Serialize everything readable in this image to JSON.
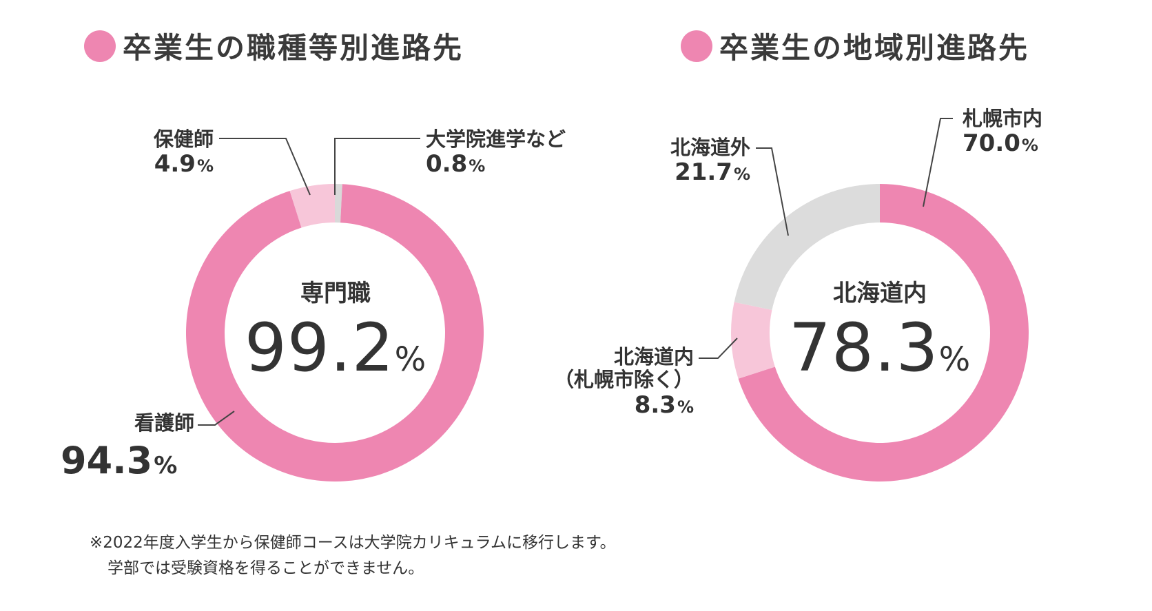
{
  "titles": {
    "left": "卒業生の職種等別進路先",
    "right": "卒業生の地域別進路先"
  },
  "chart_data": [
    {
      "type": "pie",
      "title": "卒業生の職種等別進路先",
      "center_label": "専門職",
      "center_value": "99.2",
      "center_unit": "%",
      "slices": [
        {
          "label": "大学院進学など",
          "value": 0.8,
          "value_text": "0.8",
          "unit": "%",
          "color": "#d9d9d9"
        },
        {
          "label": "看護師",
          "value": 94.3,
          "value_text": "94.3",
          "unit": "%",
          "color": "#ee86b1"
        },
        {
          "label": "保健師",
          "value": 4.9,
          "value_text": "4.9",
          "unit": "%",
          "color": "#f7c6d9"
        }
      ]
    },
    {
      "type": "pie",
      "title": "卒業生の地域別進路先",
      "center_label": "北海道内",
      "center_value": "78.3",
      "center_unit": "%",
      "slices": [
        {
          "label": "札幌市内",
          "value": 70.0,
          "value_text": "70.0",
          "unit": "%",
          "color": "#ee86b1"
        },
        {
          "label": "北海道内",
          "sublabel": "（札幌市除く）",
          "value": 8.3,
          "value_text": "8.3",
          "unit": "%",
          "color": "#f7c6d9"
        },
        {
          "label": "北海道外",
          "value": 21.7,
          "value_text": "21.7",
          "unit": "%",
          "color": "#dcdcdc"
        }
      ]
    }
  ],
  "note": {
    "line1": "※2022年度入学生から保健師コースは大学院カリキュラムに移行します。",
    "line2": "学部では受験資格を得ることができません。"
  }
}
